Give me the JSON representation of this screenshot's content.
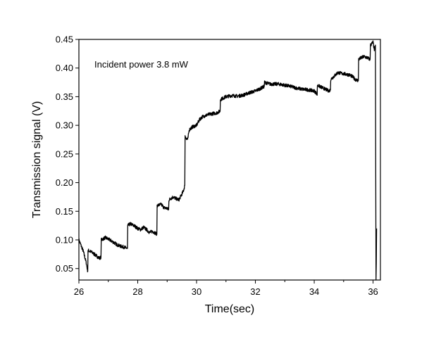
{
  "chart_data": {
    "type": "line",
    "title": "",
    "xlabel": "Time(sec)",
    "ylabel": "Transmission signal (V)",
    "annotation": "Incident power 3.8 mW",
    "xlim": [
      26,
      36.25
    ],
    "ylim": [
      0.03,
      0.45
    ],
    "xticks": [
      26,
      28,
      30,
      32,
      34,
      36
    ],
    "xtick_labels": [
      "26",
      "28",
      "30",
      "32",
      "34",
      "36"
    ],
    "yticks": [
      0.05,
      0.1,
      0.15,
      0.2,
      0.25,
      0.3,
      0.35,
      0.4,
      0.45
    ],
    "ytick_labels": [
      "0.05",
      "0.10",
      "0.15",
      "0.20",
      "0.25",
      "0.30",
      "0.35",
      "0.40",
      "0.45"
    ],
    "grid": false,
    "legend": "none",
    "line_color": "#000000",
    "noise_amplitude": 0.003,
    "series": [
      {
        "x": [
          26.0,
          26.15,
          26.25,
          26.3,
          26.31,
          26.45,
          26.6,
          26.7,
          26.75,
          26.76,
          26.9,
          27.05,
          27.2,
          27.35,
          27.5,
          27.65,
          27.66,
          27.75,
          27.9,
          28.0,
          28.1,
          28.2,
          28.3,
          28.4,
          28.5,
          28.6,
          28.65,
          28.66,
          28.8,
          28.9,
          29.0,
          29.05,
          29.06,
          29.2,
          29.3,
          29.4,
          29.55,
          29.6,
          29.61,
          29.7,
          29.75,
          29.85,
          30.0,
          30.1,
          30.2,
          30.35,
          30.5,
          30.7,
          30.8,
          30.81,
          31.0,
          31.2,
          31.4,
          31.6,
          31.8,
          32.0,
          32.2,
          32.3,
          32.31,
          32.5,
          32.8,
          33.0,
          33.2,
          33.4,
          33.6,
          33.8,
          34.0,
          34.1,
          34.11,
          34.3,
          34.5,
          34.55,
          34.56,
          34.8,
          35.0,
          35.2,
          35.3,
          35.4,
          35.5,
          35.51,
          35.6,
          35.7,
          35.8,
          35.9,
          35.91,
          36.0,
          36.05,
          36.08,
          36.1,
          36.11,
          36.12
        ],
        "y": [
          0.1,
          0.08,
          0.06,
          0.045,
          0.082,
          0.078,
          0.072,
          0.068,
          0.07,
          0.1,
          0.104,
          0.1,
          0.095,
          0.09,
          0.088,
          0.085,
          0.125,
          0.128,
          0.124,
          0.12,
          0.118,
          0.122,
          0.118,
          0.113,
          0.115,
          0.112,
          0.11,
          0.16,
          0.162,
          0.156,
          0.155,
          0.152,
          0.17,
          0.175,
          0.172,
          0.17,
          0.185,
          0.195,
          0.28,
          0.275,
          0.292,
          0.297,
          0.3,
          0.31,
          0.315,
          0.318,
          0.32,
          0.322,
          0.325,
          0.345,
          0.35,
          0.352,
          0.351,
          0.353,
          0.357,
          0.36,
          0.365,
          0.368,
          0.375,
          0.372,
          0.372,
          0.37,
          0.368,
          0.365,
          0.363,
          0.362,
          0.36,
          0.355,
          0.37,
          0.365,
          0.36,
          0.362,
          0.38,
          0.392,
          0.39,
          0.388,
          0.385,
          0.38,
          0.378,
          0.415,
          0.418,
          0.42,
          0.418,
          0.415,
          0.44,
          0.445,
          0.43,
          0.44,
          0.03,
          0.06,
          0.12
        ]
      }
    ]
  }
}
